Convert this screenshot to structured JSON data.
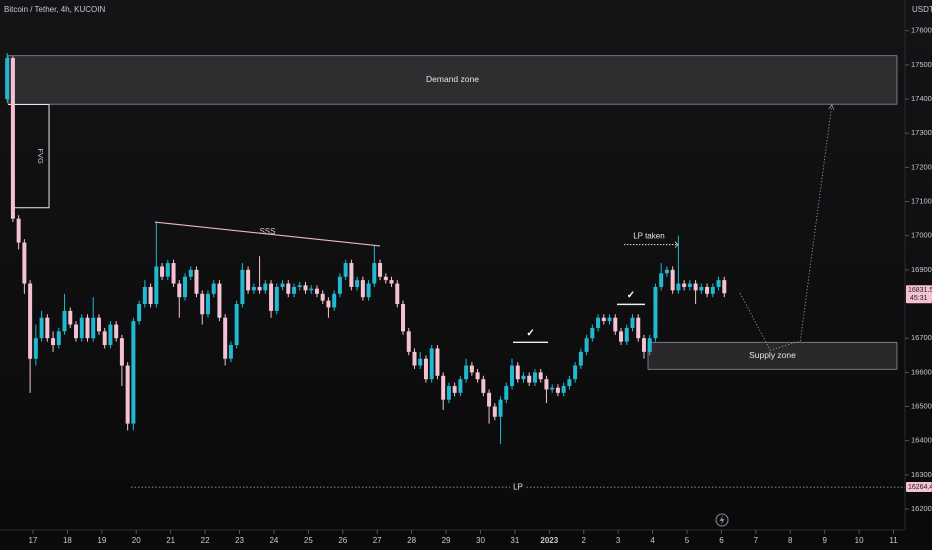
{
  "chart_data": {
    "type": "candlestick",
    "title": "Bitcoin / Tether, 4h, KUCOIN",
    "currency": "USDT",
    "up_color": "#22b8cf",
    "down_color": "#f5c2d3",
    "x": [
      -18,
      -14,
      -10,
      -6,
      -2,
      2,
      6,
      10,
      14,
      18,
      22,
      26,
      30,
      34,
      38,
      42,
      46,
      50,
      54,
      58,
      62,
      66,
      70,
      74,
      78,
      82,
      86,
      90,
      94,
      98,
      102,
      106,
      110,
      114,
      118,
      122,
      126,
      130,
      134,
      138,
      142,
      146,
      150,
      154,
      158,
      162,
      166,
      170,
      174,
      178,
      182,
      186,
      190,
      194,
      198,
      202,
      206,
      210,
      214,
      218,
      222,
      226,
      230,
      234,
      238,
      242,
      246,
      250,
      254,
      258,
      262,
      266,
      270,
      274,
      278,
      282,
      286,
      290,
      294,
      298,
      302,
      306,
      310,
      314,
      318,
      322,
      326,
      330,
      334,
      338,
      342,
      346,
      350,
      354,
      358,
      362,
      366,
      370,
      374,
      378,
      382,
      386,
      390,
      394,
      398,
      402,
      406,
      410,
      414,
      418,
      422,
      426,
      430,
      434,
      438,
      442,
      446,
      450,
      454,
      458,
      462,
      466,
      470,
      474,
      478,
      482
    ],
    "open": [
      17400,
      17520,
      17050,
      16980,
      16860,
      16640,
      16700,
      16760,
      16700,
      16680,
      16720,
      16780,
      16740,
      16700,
      16760,
      16700,
      16760,
      16720,
      16680,
      16740,
      16700,
      16620,
      16450,
      16750,
      16800,
      16850,
      16800,
      16910,
      16880,
      16920,
      16860,
      16820,
      16880,
      16900,
      16830,
      16770,
      16830,
      16860,
      16760,
      16640,
      16680,
      16800,
      16900,
      16840,
      16850,
      16840,
      16860,
      16780,
      16850,
      16860,
      16830,
      16850,
      16855,
      16840,
      16845,
      16830,
      16810,
      16790,
      16830,
      16880,
      16920,
      16850,
      16870,
      16820,
      16860,
      16920,
      16880,
      16870,
      16860,
      16800,
      16720,
      16660,
      16620,
      16640,
      16580,
      16670,
      16590,
      16520,
      16560,
      16540,
      16580,
      16620,
      16600,
      16580,
      16540,
      16500,
      16470,
      16520,
      16560,
      16620,
      16580,
      16590,
      16570,
      16600,
      16580,
      16550,
      16555,
      16540,
      16560,
      16580,
      16620,
      16660,
      16700,
      16730,
      16760,
      16750,
      16760,
      16720,
      16690,
      16730,
      16760,
      16700,
      16660,
      16700,
      16850,
      16890,
      16900,
      16840,
      16860,
      16850,
      16860,
      16840,
      16850,
      16830,
      16850,
      16870
    ],
    "high": [
      17535,
      17525,
      17060,
      16990,
      16870,
      16740,
      16780,
      16770,
      16720,
      16730,
      16830,
      16790,
      16750,
      16770,
      16770,
      16820,
      16770,
      16730,
      16750,
      16750,
      16710,
      16630,
      16760,
      16810,
      16870,
      16860,
      17040,
      16920,
      16930,
      16930,
      16870,
      16890,
      16910,
      16910,
      16840,
      16840,
      16870,
      16870,
      16770,
      16690,
      16810,
      16920,
      16910,
      16860,
      16940,
      16870,
      16870,
      16860,
      16870,
      16870,
      16860,
      16865,
      16865,
      16855,
      16855,
      16840,
      16820,
      16840,
      16890,
      16930,
      16930,
      16880,
      16880,
      16870,
      16970,
      16930,
      16890,
      16880,
      16870,
      16810,
      16730,
      16670,
      16660,
      16650,
      16680,
      16680,
      16600,
      16570,
      16570,
      16590,
      16640,
      16630,
      16610,
      16590,
      16550,
      16510,
      16530,
      16570,
      16640,
      16630,
      16600,
      16600,
      16610,
      16610,
      16590,
      16565,
      16565,
      16570,
      16590,
      16630,
      16670,
      16710,
      16740,
      16770,
      16770,
      16770,
      16770,
      16730,
      16740,
      16770,
      16770,
      16710,
      16710,
      16860,
      16920,
      16910,
      16910,
      17000,
      16870,
      16870,
      16870,
      16860,
      16860,
      16860,
      16880,
      16880
    ],
    "low": [
      17390,
      17040,
      16960,
      16830,
      16540,
      16620,
      16690,
      16690,
      16660,
      16670,
      16710,
      16730,
      16690,
      16690,
      16690,
      16690,
      16710,
      16670,
      16670,
      16690,
      16560,
      16430,
      16430,
      16740,
      16790,
      16790,
      16790,
      16870,
      16870,
      16850,
      16760,
      16810,
      16870,
      16820,
      16740,
      16760,
      16820,
      16750,
      16620,
      16630,
      16670,
      16790,
      16830,
      16830,
      16830,
      16830,
      16760,
      16770,
      16840,
      16820,
      16820,
      16840,
      16830,
      16830,
      16820,
      16800,
      16760,
      16780,
      16820,
      16870,
      16840,
      16840,
      16810,
      16810,
      16850,
      16870,
      16860,
      16850,
      16790,
      16710,
      16650,
      16610,
      16610,
      16570,
      16570,
      16580,
      16490,
      16510,
      16530,
      16530,
      16570,
      16590,
      16570,
      16530,
      16450,
      16460,
      16390,
      16510,
      16550,
      16570,
      16570,
      16560,
      16560,
      16570,
      16510,
      16540,
      16530,
      16530,
      16550,
      16570,
      16610,
      16650,
      16690,
      16720,
      16740,
      16740,
      16710,
      16680,
      16680,
      16720,
      16690,
      16640,
      16650,
      16690,
      16840,
      16880,
      16830,
      16830,
      16840,
      16840,
      16800,
      16830,
      16820,
      16820,
      16840,
      16820
    ],
    "close": [
      17520,
      17050,
      16980,
      16860,
      16640,
      16700,
      16760,
      16700,
      16680,
      16720,
      16780,
      16740,
      16700,
      16760,
      16700,
      16760,
      16720,
      16680,
      16740,
      16700,
      16620,
      16450,
      16750,
      16800,
      16850,
      16800,
      16910,
      16880,
      16920,
      16860,
      16820,
      16880,
      16900,
      16830,
      16770,
      16830,
      16860,
      16760,
      16640,
      16680,
      16800,
      16900,
      16840,
      16850,
      16840,
      16860,
      16780,
      16850,
      16860,
      16830,
      16850,
      16855,
      16840,
      16845,
      16830,
      16810,
      16790,
      16830,
      16880,
      16920,
      16850,
      16870,
      16820,
      16860,
      16920,
      16880,
      16870,
      16860,
      16800,
      16720,
      16660,
      16620,
      16640,
      16580,
      16670,
      16590,
      16520,
      16560,
      16540,
      16580,
      16620,
      16600,
      16580,
      16540,
      16500,
      16470,
      16520,
      16560,
      16620,
      16580,
      16590,
      16570,
      16600,
      16580,
      16550,
      16555,
      16540,
      16560,
      16580,
      16620,
      16660,
      16700,
      16730,
      16760,
      16750,
      16760,
      16720,
      16690,
      16730,
      16760,
      16700,
      16660,
      16700,
      16850,
      16890,
      16900,
      16840,
      16860,
      16850,
      16860,
      16840,
      16850,
      16830,
      16850,
      16870,
      16831.5
    ],
    "xlim": [
      -23,
      608
    ],
    "ylim": [
      17690,
      16080
    ],
    "xticks": [
      {
        "value": 0,
        "label": "17"
      },
      {
        "value": 24,
        "label": "18"
      },
      {
        "value": 48,
        "label": "19"
      },
      {
        "value": 72,
        "label": "20"
      },
      {
        "value": 96,
        "label": "21"
      },
      {
        "value": 120,
        "label": "22"
      },
      {
        "value": 144,
        "label": "23"
      },
      {
        "value": 168,
        "label": "24"
      },
      {
        "value": 192,
        "label": "25"
      },
      {
        "value": 216,
        "label": "26"
      },
      {
        "value": 240,
        "label": "27"
      },
      {
        "value": 264,
        "label": "28"
      },
      {
        "value": 288,
        "label": "29"
      },
      {
        "value": 312,
        "label": "30"
      },
      {
        "value": 336,
        "label": "31"
      },
      {
        "value": 360,
        "label": "2023"
      },
      {
        "value": 384,
        "label": "2"
      },
      {
        "value": 408,
        "label": "3"
      },
      {
        "value": 432,
        "label": "4"
      },
      {
        "value": 456,
        "label": "5"
      },
      {
        "value": 480,
        "label": "6"
      },
      {
        "value": 504,
        "label": "7"
      },
      {
        "value": 528,
        "label": "8"
      },
      {
        "value": 552,
        "label": "9"
      },
      {
        "value": 576,
        "label": "10"
      },
      {
        "value": 600,
        "label": "11"
      }
    ],
    "yticks": [
      {
        "value": 17600,
        "label": "17600.0"
      },
      {
        "value": 17500,
        "label": "17500.0"
      },
      {
        "value": 17400,
        "label": "17400.0"
      },
      {
        "value": 17300,
        "label": "17300.0"
      },
      {
        "value": 17200,
        "label": "17200.0"
      },
      {
        "value": 17100,
        "label": "17100.0"
      },
      {
        "value": 17000,
        "label": "17000.0"
      },
      {
        "value": 16900,
        "label": "16900.0"
      },
      {
        "value": 16700,
        "label": "16700.0"
      },
      {
        "value": 16600,
        "label": "16600.0"
      },
      {
        "value": 16500,
        "label": "16500.0"
      },
      {
        "value": 16400,
        "label": "16400.0"
      },
      {
        "value": 16300,
        "label": "16300.0"
      },
      {
        "value": 16200,
        "label": "16200.0"
      }
    ],
    "last_price": {
      "value": 16831.5,
      "label": "16831.5",
      "countdown": "45:31"
    },
    "lp_price": {
      "value": 16264.4,
      "label": "16264.4"
    },
    "demand_zone": {
      "label": "Demand zone",
      "x": [
        -17.4,
        602.4
      ],
      "y": [
        17385,
        17527
      ]
    },
    "supply_zone": {
      "label": "Supply zone",
      "x": [
        428.8,
        602.4
      ],
      "y": [
        16609,
        16688
      ]
    },
    "fvg": {
      "label": "FVG",
      "x": [
        -17.4,
        11.2
      ],
      "y": [
        17082,
        17384
      ]
    },
    "sss": {
      "label": "SSS",
      "x": [
        85,
        242
      ],
      "y": [
        17040,
        16970
      ]
    },
    "lp": {
      "label": "LP",
      "x": [
        68.3,
        608
      ],
      "y": 16264
    },
    "lp_taken": {
      "label": "LP taken",
      "x": [
        412,
        449.7
      ],
      "y": 16974
    },
    "checks": [
      {
        "label": "✓",
        "x": [
          334.7,
          359.1
        ],
        "y": 16688
      },
      {
        "label": "✓",
        "x": [
          407.2,
          426.7
        ],
        "y": 16799
      }
    ],
    "projection": {
      "x": [
        493,
        514,
        535,
        557
      ],
      "y": [
        16832,
        16665,
        16692,
        17383
      ]
    }
  }
}
